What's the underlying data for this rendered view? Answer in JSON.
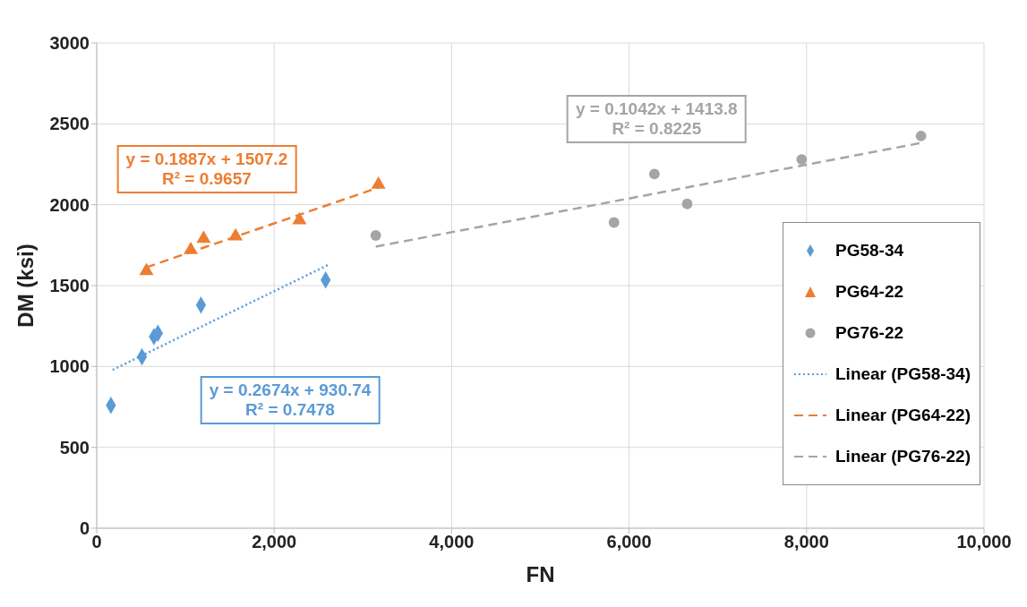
{
  "chart_data": {
    "type": "scatter",
    "xlabel": "FN",
    "ylabel": "DM (ksi)",
    "xlim": [
      0,
      10000
    ],
    "xticks": [
      0,
      {
        "value": 2000,
        "label": "2,000"
      },
      {
        "value": 4000,
        "label": "4,000"
      },
      {
        "value": 6000,
        "label": "6,000"
      },
      {
        "value": 8000,
        "label": "8,000"
      },
      {
        "value": 10000,
        "label": "10,000"
      }
    ],
    "ylim": [
      0,
      3000
    ],
    "yticks": [
      0,
      500,
      1000,
      1500,
      2000,
      2500,
      3000
    ],
    "grid": true,
    "legend": "right",
    "series": [
      {
        "name": "PG58-34",
        "marker": "diamond",
        "color": "#5b9bd5",
        "x": [
          160,
          510,
          645,
          690,
          1175,
          2580
        ],
        "values": [
          760,
          1060,
          1185,
          1205,
          1380,
          1535
        ]
      },
      {
        "name": "PG64-22",
        "marker": "triangle",
        "color": "#ed7d31",
        "x": [
          560,
          1060,
          1205,
          1565,
          2285,
          3175
        ],
        "values": [
          1590,
          1720,
          1790,
          1805,
          1905,
          2125
        ]
      },
      {
        "name": "PG76-22",
        "marker": "circle",
        "color": "#a5a5a5",
        "x": [
          3145,
          5830,
          6285,
          6655,
          7945,
          9290
        ],
        "values": [
          1810,
          1890,
          2190,
          2005,
          2280,
          2425
        ]
      },
      {
        "name": "Linear (PG58-34)",
        "type": "line",
        "line_style": "dotted",
        "color": "#5b9bd5",
        "x": [
          180,
          2620
        ],
        "values": [
          979,
          1631
        ]
      },
      {
        "name": "Linear (PG64-22)",
        "type": "line",
        "line_style": "dashed",
        "color": "#ed7d31",
        "x": [
          560,
          3175
        ],
        "values": [
          1613,
          2106
        ]
      },
      {
        "name": "Linear (PG76-22)",
        "type": "line",
        "line_style": "dashed",
        "color": "#a5a5a5",
        "x": [
          3145,
          9290
        ],
        "values": [
          1741,
          2382
        ]
      }
    ],
    "annotations": [
      "y = 0.2674x + 930.74\nR² = 0.7478",
      "y = 0.1887x + 1507.2\nR² = 0.9657",
      "y = 0.1042x + 1413.8\nR² = 0.8225"
    ]
  }
}
